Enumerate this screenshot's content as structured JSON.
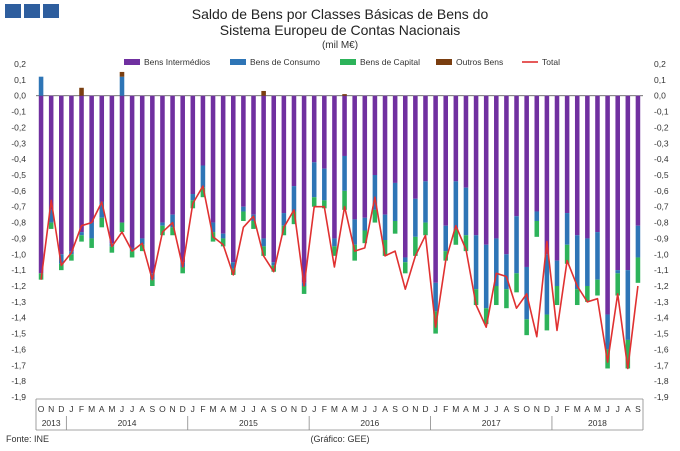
{
  "title_line1": "Saldo de Bens por Classes Básicas de Bens do",
  "title_line2": "Sistema Europeu de Contas Nacionais",
  "unit": "(mil M€)",
  "source": "Fonte: INE",
  "credit": "(Gráfico: GEE)",
  "colors": {
    "intermedios": "#7030a0",
    "consumo": "#2e75b6",
    "capital": "#2db35a",
    "outros": "#7a3e10",
    "total": "#e03131"
  },
  "chart_data": {
    "type": "bar",
    "stacked": true,
    "months": [
      "O",
      "N",
      "D",
      "J",
      "F",
      "M",
      "A",
      "M",
      "J",
      "J",
      "A",
      "S",
      "O",
      "N",
      "D",
      "J",
      "F",
      "M",
      "A",
      "M",
      "J",
      "J",
      "A",
      "S",
      "O",
      "N",
      "D",
      "J",
      "F",
      "M",
      "A",
      "M",
      "J",
      "J",
      "A",
      "S",
      "O",
      "N",
      "D",
      "J",
      "F",
      "M",
      "A",
      "M",
      "J",
      "J",
      "A",
      "S",
      "O",
      "N",
      "D",
      "J",
      "F",
      "M",
      "A",
      "M",
      "J",
      "J",
      "A",
      "S"
    ],
    "years": [
      {
        "label": "2013",
        "start": 0,
        "end": 2
      },
      {
        "label": "2014",
        "start": 3,
        "end": 14
      },
      {
        "label": "2015",
        "start": 15,
        "end": 26
      },
      {
        "label": "2016",
        "start": 27,
        "end": 38
      },
      {
        "label": "2017",
        "start": 39,
        "end": 50
      },
      {
        "label": "2018",
        "start": 51,
        "end": 59
      }
    ],
    "y_ticks": [
      "0,2",
      "0,1",
      "0,0",
      "-0,1",
      "-0,2",
      "-0,3",
      "-0,4",
      "-0,5",
      "-0,6",
      "-0,7",
      "-0,8",
      "-0,9",
      "-1,0",
      "-1,1",
      "-1,2",
      "-1,3",
      "-1,4",
      "-1,5",
      "-1,6",
      "-1,7",
      "-1,8",
      "-1,9"
    ],
    "ylim": [
      -1.9,
      0.2
    ],
    "legend_placement": "top",
    "grid": false,
    "series": [
      {
        "name": "Bens Intermédios",
        "key": "intermedios",
        "kind": "bar",
        "values": [
          -1.12,
          -0.72,
          -1.0,
          -0.98,
          -0.86,
          -0.8,
          -0.67,
          -0.93,
          -0.8,
          -0.96,
          -0.9,
          -1.12,
          -0.8,
          -0.75,
          -1.05,
          -0.62,
          -0.44,
          -0.8,
          -0.87,
          -1.05,
          -0.7,
          -0.75,
          -0.9,
          -1.05,
          -0.74,
          -0.57,
          -1.18,
          -0.42,
          -0.46,
          -0.9,
          -0.38,
          -0.78,
          -0.77,
          -0.5,
          -0.75,
          -0.55,
          -1.02,
          -0.65,
          -0.54,
          -1.18,
          -0.82,
          -0.54,
          -0.58,
          -0.88,
          -0.94,
          -0.9,
          -1.0,
          -0.76,
          -1.08,
          -0.73,
          -1.0,
          -1.04,
          -0.74,
          -0.88,
          -0.9,
          -0.86,
          -1.38,
          -1.1,
          -1.1,
          -0.82
        ]
      },
      {
        "name": "Bens de Consumo",
        "key": "consumo",
        "values": [
          0.12,
          -0.08,
          -0.06,
          -0.02,
          -0.02,
          -0.1,
          -0.1,
          -0.02,
          0.12,
          -0.02,
          -0.04,
          -0.04,
          -0.02,
          -0.08,
          -0.03,
          -0.04,
          -0.14,
          -0.06,
          -0.03,
          -0.04,
          -0.03,
          -0.04,
          -0.05,
          -0.02,
          -0.08,
          -0.16,
          -0.02,
          -0.22,
          -0.2,
          -0.05,
          -0.22,
          -0.16,
          -0.08,
          -0.22,
          -0.16,
          -0.24,
          -0.03,
          -0.24,
          -0.26,
          -0.18,
          -0.16,
          -0.3,
          -0.3,
          -0.34,
          -0.4,
          -0.3,
          -0.22,
          -0.36,
          -0.33,
          -0.06,
          -0.38,
          -0.16,
          -0.2,
          -0.34,
          -0.3,
          -0.3,
          -0.22,
          -0.02,
          -0.44,
          -0.2
        ]
      },
      {
        "name": "Bens de Capital",
        "key": "capital",
        "values": [
          -0.04,
          -0.04,
          -0.04,
          -0.04,
          -0.04,
          -0.06,
          -0.06,
          -0.04,
          -0.06,
          -0.04,
          -0.04,
          -0.04,
          -0.06,
          -0.05,
          -0.04,
          -0.05,
          -0.06,
          -0.06,
          -0.05,
          -0.04,
          -0.06,
          -0.05,
          -0.06,
          -0.04,
          -0.06,
          -0.08,
          -0.05,
          -0.06,
          -0.05,
          -0.06,
          -0.12,
          -0.1,
          -0.08,
          -0.08,
          -0.1,
          -0.08,
          -0.07,
          -0.12,
          -0.08,
          -0.14,
          -0.06,
          -0.1,
          -0.1,
          -0.1,
          -0.1,
          -0.12,
          -0.12,
          -0.12,
          -0.1,
          -0.1,
          -0.1,
          -0.12,
          -0.12,
          -0.1,
          -0.1,
          -0.1,
          -0.12,
          -0.14,
          -0.18,
          -0.16
        ]
      },
      {
        "name": "Outros Bens",
        "key": "outros",
        "values": [
          0.0,
          0.0,
          0.0,
          0.0,
          0.05,
          0.0,
          0.0,
          0.0,
          0.03,
          0.0,
          0.0,
          0.0,
          0.0,
          0.0,
          0.0,
          0.0,
          0.0,
          0.0,
          0.0,
          0.0,
          0.0,
          0.0,
          0.03,
          0.0,
          0.0,
          0.0,
          0.0,
          0.0,
          0.0,
          0.0,
          0.01,
          0.0,
          0.0,
          0.0,
          0.0,
          0.0,
          0.0,
          0.0,
          0.0,
          0.0,
          0.0,
          0.0,
          0.0,
          0.0,
          0.0,
          0.0,
          0.0,
          0.0,
          0.0,
          0.0,
          0.0,
          0.0,
          0.0,
          0.0,
          0.0,
          0.0,
          0.0,
          0.0,
          0.0,
          0.0
        ]
      },
      {
        "name": "Total",
        "key": "total",
        "kind": "line",
        "values": [
          -1.16,
          -0.66,
          -1.07,
          -0.99,
          -0.82,
          -0.8,
          -0.67,
          -0.95,
          -0.86,
          -0.98,
          -0.93,
          -1.16,
          -0.86,
          -0.8,
          -1.08,
          -0.68,
          -0.57,
          -0.89,
          -0.94,
          -1.13,
          -0.83,
          -0.76,
          -1.01,
          -1.11,
          -0.83,
          -0.72,
          -1.2,
          -0.7,
          -0.7,
          -1.08,
          -0.7,
          -0.98,
          -0.96,
          -0.64,
          -1.01,
          -0.98,
          -1.22,
          -1.01,
          -0.88,
          -1.46,
          -1.04,
          -0.82,
          -0.97,
          -1.32,
          -1.46,
          -1.12,
          -1.14,
          -1.34,
          -1.25,
          -1.52,
          -0.92,
          -1.48,
          -1.04,
          -1.2,
          -1.3,
          -1.28,
          -1.68,
          -1.25,
          -1.72,
          -1.2
        ]
      }
    ]
  }
}
